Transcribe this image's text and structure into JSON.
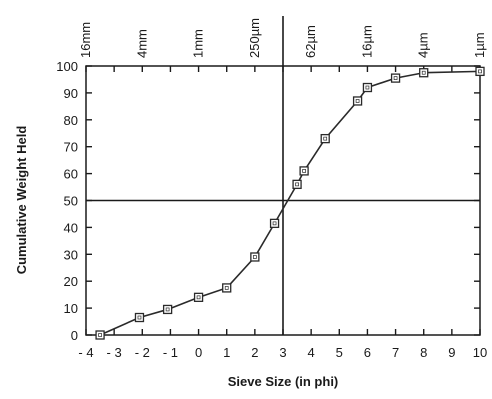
{
  "chart_data": {
    "type": "line",
    "xlabel": "Sieve Size (in phi)",
    "ylabel": "Cumulative Weight Held",
    "xlim": [
      -4,
      10
    ],
    "ylim": [
      0,
      100
    ],
    "x_ticks": [
      -4,
      -3,
      -2,
      -1,
      0,
      1,
      2,
      3,
      4,
      5,
      6,
      7,
      8,
      9,
      10
    ],
    "x_tick_labels": [
      "- 4",
      "- 3",
      "- 2",
      "- 1",
      "0",
      "1",
      "2",
      "3",
      "4",
      "5",
      "6",
      "7",
      "8",
      "9",
      "10"
    ],
    "y_ticks": [
      0,
      10,
      20,
      30,
      40,
      50,
      60,
      70,
      80,
      90,
      100
    ],
    "y_tick_labels": [
      "0",
      "10",
      "20",
      "30",
      "40",
      "50",
      "60",
      "70",
      "80",
      "90",
      "100"
    ],
    "top_axis": [
      {
        "phi": -4,
        "label": "16mm"
      },
      {
        "phi": -2,
        "label": "4mm"
      },
      {
        "phi": 0,
        "label": "1mm"
      },
      {
        "phi": 2,
        "label": "250µm"
      },
      {
        "phi": 4,
        "label": "62µm"
      },
      {
        "phi": 6,
        "label": "16µm"
      },
      {
        "phi": 8,
        "label": "4µm"
      },
      {
        "phi": 10,
        "label": "1µm"
      }
    ],
    "reference_lines": {
      "x": 3,
      "y": 50
    },
    "marker": "open-square",
    "grid": false,
    "series": [
      {
        "x": [
          -3.5,
          -2.1,
          -1.1,
          0,
          1,
          2,
          2.7,
          3.5,
          3.75,
          4.5,
          5.65,
          6,
          7,
          8,
          10
        ],
        "y": [
          0,
          6.5,
          9.5,
          14,
          17.5,
          29,
          41.5,
          56,
          61,
          73,
          87,
          92,
          95.5,
          97.5,
          98
        ]
      }
    ]
  }
}
